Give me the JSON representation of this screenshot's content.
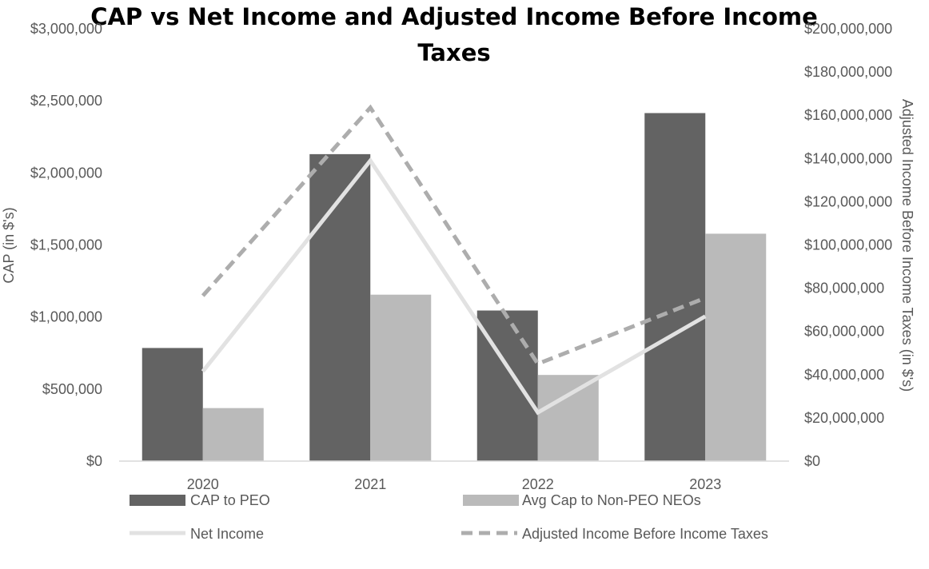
{
  "chart_data": {
    "type": "bar",
    "title_line1": "CAP vs Net Income and Adjusted Income Before Income",
    "title_line2": "Taxes",
    "categories": [
      "2020",
      "2021",
      "2022",
      "2023"
    ],
    "ylabel": "CAP (in $'s)",
    "y2label": "Adjusted Income Before Income Taxes (in $'s)",
    "ylim": [
      0,
      3000000
    ],
    "y2lim": [
      0,
      200000000
    ],
    "y_ticks": [
      {
        "value": 0,
        "label": "$0"
      },
      {
        "value": 500000,
        "label": "$500,000"
      },
      {
        "value": 1000000,
        "label": "$1,000,000"
      },
      {
        "value": 1500000,
        "label": "$1,500,000"
      },
      {
        "value": 2000000,
        "label": "$2,000,000"
      },
      {
        "value": 2500000,
        "label": "$2,500,000"
      },
      {
        "value": 3000000,
        "label": "$3,000,000"
      }
    ],
    "y2_ticks": [
      {
        "value": 0,
        "label": "$0"
      },
      {
        "value": 20000000,
        "label": "$20,000,000"
      },
      {
        "value": 40000000,
        "label": "$40,000,000"
      },
      {
        "value": 60000000,
        "label": "$60,000,000"
      },
      {
        "value": 80000000,
        "label": "$80,000,000"
      },
      {
        "value": 100000000,
        "label": "$100,000,000"
      },
      {
        "value": 120000000,
        "label": "$120,000,000"
      },
      {
        "value": 140000000,
        "label": "$140,000,000"
      },
      {
        "value": 160000000,
        "label": "$160,000,000"
      },
      {
        "value": 180000000,
        "label": "$180,000,000"
      },
      {
        "value": 200000000,
        "label": "$200,000,000"
      }
    ],
    "bar_series": [
      {
        "name": "CAP to PEO",
        "color": "#636363",
        "values": [
          785000,
          2130000,
          1045000,
          2415000
        ]
      },
      {
        "name": "Avg Cap to Non-PEO NEOs",
        "color": "#bababa",
        "values": [
          368000,
          1155000,
          598000,
          1578000
        ]
      }
    ],
    "line_series": [
      {
        "name": "Net Income",
        "color": "#e2e2e2",
        "dashed": false,
        "axis": "right",
        "values": [
          41500000,
          139000000,
          22500000,
          67000000
        ]
      },
      {
        "name": "Adjusted Income Before Income Taxes",
        "color": "#adadad",
        "dashed": true,
        "axis": "right",
        "values": [
          76500000,
          163500000,
          45000000,
          75500000
        ]
      }
    ],
    "grid": false,
    "legend_position": "bottom"
  }
}
